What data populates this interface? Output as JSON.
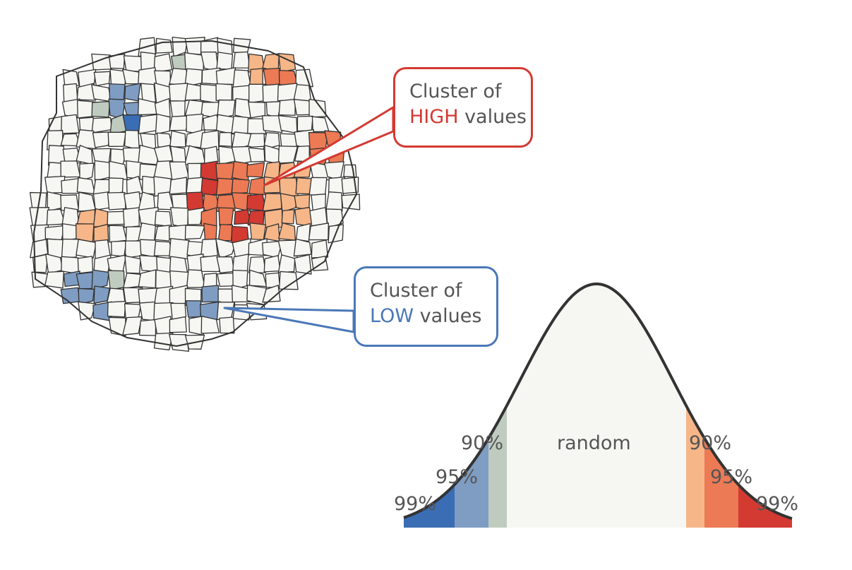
{
  "callouts": {
    "high": {
      "line1": "Cluster of",
      "keyword": "HIGH",
      "rest": " values"
    },
    "low": {
      "line1": "Cluster of",
      "keyword": "LOW",
      "rest": " values"
    }
  },
  "curve_labels": {
    "center": "random",
    "left_90": "90%",
    "left_95": "95%",
    "left_99": "99%",
    "right_90": "90%",
    "right_95": "95%",
    "right_99": "99%"
  },
  "colors": {
    "high_99": "#d33a32",
    "high_95": "#ec7a54",
    "high_90": "#f6b688",
    "low_99": "#3b6db4",
    "low_95": "#7f9dc3",
    "low_90": "#c0cbbf",
    "neutral": "#f6f7f2",
    "outline": "#333333"
  }
}
